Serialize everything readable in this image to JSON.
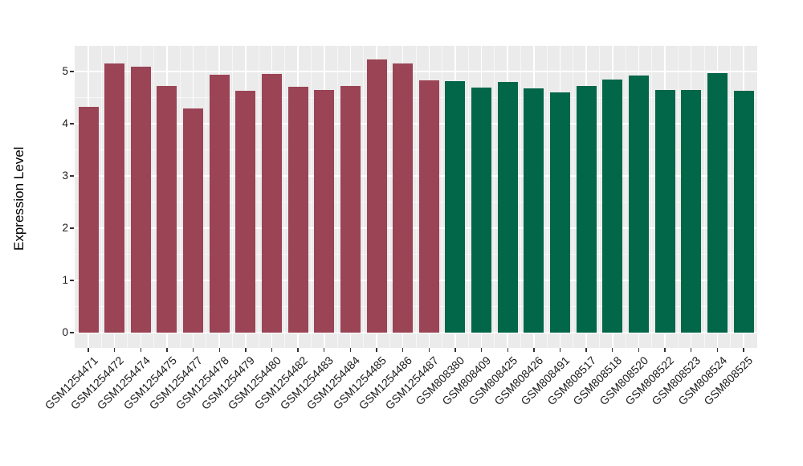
{
  "chart_data": {
    "type": "bar",
    "title": "",
    "xlabel": "",
    "ylabel": "Expression Level",
    "ylim": [
      -0.293,
      5.492
    ],
    "y_ticks": [
      0,
      1,
      2,
      3,
      4,
      5
    ],
    "y_minor_ticks": [
      0.5,
      1.5,
      2.5,
      3.5,
      4.5
    ],
    "grid": "major and minor gridlines on",
    "legend_position": "none",
    "panel_bg_color": "#EBEBEB",
    "grid_major_color": "#FFFFFF",
    "grid_minor_color": "rgba(255,255,255,0.6)",
    "axis_text_color": "#1a1a1a",
    "tick_mark_color": "#333333",
    "categories": [
      "GSM1254471",
      "GSM1254472",
      "GSM1254474",
      "GSM1254475",
      "GSM1254477",
      "GSM1254478",
      "GSM1254479",
      "GSM1254480",
      "GSM1254482",
      "GSM1254483",
      "GSM1254484",
      "GSM1254485",
      "GSM1254486",
      "GSM1254487",
      "GSM808380",
      "GSM808409",
      "GSM808425",
      "GSM808426",
      "GSM808491",
      "GSM808517",
      "GSM808518",
      "GSM808520",
      "GSM808522",
      "GSM808523",
      "GSM808524",
      "GSM808525"
    ],
    "series": [
      {
        "name": "GSM1254471-GSM1254487",
        "color": "#9A4455",
        "values": [
          4.33,
          5.15,
          5.09,
          4.72,
          4.29,
          4.94,
          4.63,
          4.96,
          4.71,
          4.65,
          4.72,
          5.23,
          5.15,
          4.83
        ]
      },
      {
        "name": "GSM808380-GSM808525",
        "color": "#026649",
        "values": [
          4.81,
          4.69,
          4.8,
          4.68,
          4.6,
          4.73,
          4.85,
          4.93,
          4.65,
          4.64,
          4.97,
          4.63
        ]
      }
    ]
  }
}
